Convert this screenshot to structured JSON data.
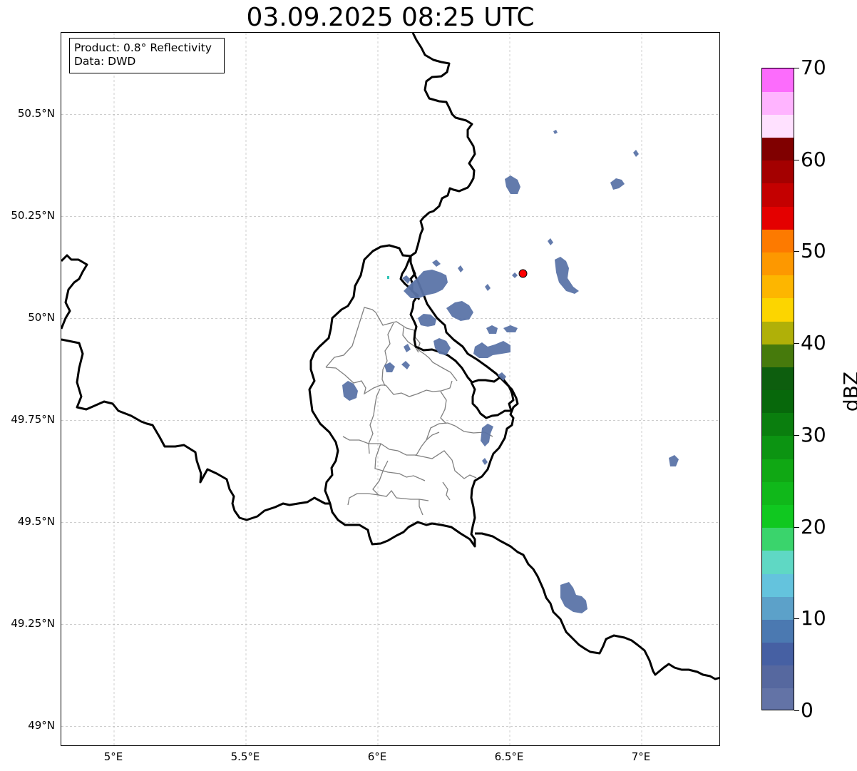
{
  "title": "03.09.2025 08:25 UTC",
  "info": {
    "product_line": "Product: 0.8° Reflectivity",
    "data_line": "Data: DWD"
  },
  "map": {
    "lon_range": [
      4.8,
      7.3
    ],
    "lat_range": [
      48.95,
      50.7
    ],
    "gridlines": true,
    "lon_ticks": [
      {
        "value": 5.0,
        "label": "5°E"
      },
      {
        "value": 5.5,
        "label": "5.5°E"
      },
      {
        "value": 6.0,
        "label": "6°E"
      },
      {
        "value": 6.5,
        "label": "6.5°E"
      },
      {
        "value": 7.0,
        "label": "7°E"
      }
    ],
    "lat_ticks": [
      {
        "value": 50.5,
        "label": "50.5°N"
      },
      {
        "value": 50.25,
        "label": "50.25°N"
      },
      {
        "value": 50.0,
        "label": "50°N"
      },
      {
        "value": 49.75,
        "label": "49.75°N"
      },
      {
        "value": 49.5,
        "label": "49.5°N"
      },
      {
        "value": 49.25,
        "label": "49.25°N"
      },
      {
        "value": 49.0,
        "label": "49°N"
      }
    ],
    "radar_site": {
      "lon": 6.55,
      "lat": 50.11,
      "color": "#ff0000"
    },
    "echo_color": "#5b74a8",
    "country_border_color": "#000000",
    "district_border_color": "#808080"
  },
  "colorbar": {
    "label": "dBZ",
    "min": 0,
    "max": 70,
    "step": 2.5,
    "ticks": [
      0,
      10,
      20,
      30,
      40,
      50,
      60,
      70
    ],
    "colors": [
      "#6373a6",
      "#56689f",
      "#4660a3",
      "#4b79b1",
      "#5ca1c9",
      "#64c3dd",
      "#5fd8c4",
      "#3ad46c",
      "#10c820",
      "#10b81a",
      "#10a814",
      "#0c9412",
      "#0a7e0e",
      "#07680b",
      "#0d5e0e",
      "#467a0c",
      "#b0b008",
      "#fcd500",
      "#fdb600",
      "#fd9800",
      "#fd7a00",
      "#e40000",
      "#c40000",
      "#a40000",
      "#800000",
      "#ffe1ff",
      "#ffb4ff",
      "#fc6cfc",
      "#ec36ec"
    ]
  }
}
